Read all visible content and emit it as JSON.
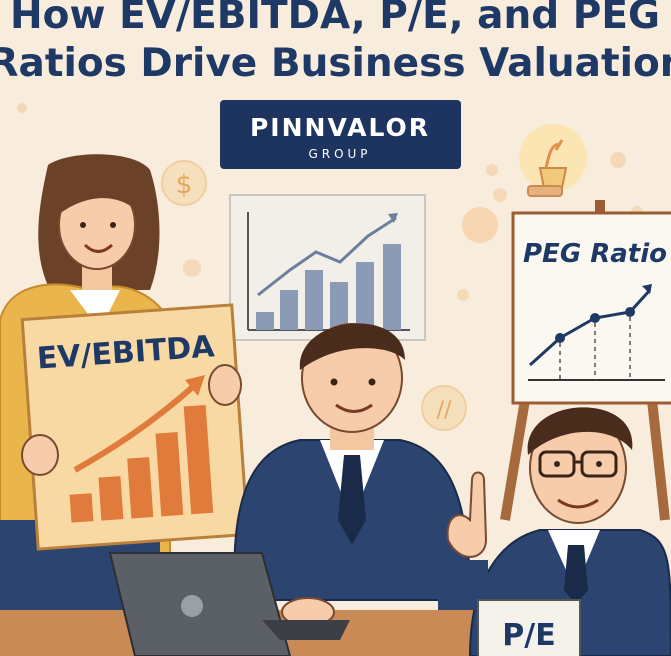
{
  "title": {
    "line1": "How EV/EBITDA, P/E, and PEG",
    "line2": "Ratios Drive Business Valuation"
  },
  "logo": {
    "name": "PINNVALOR",
    "sub": "GROUP"
  },
  "signs": {
    "ev_ebitda": "EV/EBITDA",
    "peg": "PEG Ratio",
    "pe": "P/E"
  },
  "icons": {
    "dollar": "$"
  },
  "colors": {
    "background": "#f8ecdc",
    "title": "#1f3966",
    "logo_bg": "#1d3360",
    "suit": "#2c4470",
    "bars_orange": "#e07b3c",
    "bars_blue": "#8b9bb6"
  }
}
